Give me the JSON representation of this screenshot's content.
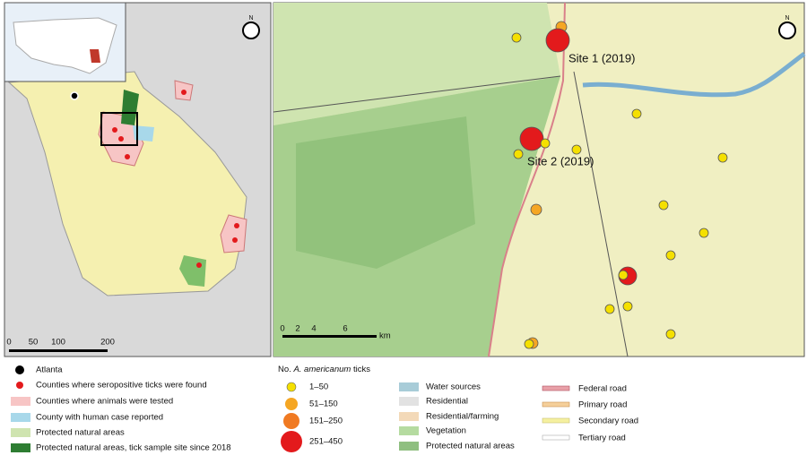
{
  "left_map": {
    "scale_labels": [
      "0",
      "50",
      "100",
      "200"
    ],
    "north_label": "N"
  },
  "right_map": {
    "site_labels": [
      "Site 1 (2019)",
      "Site 2 (2019)"
    ],
    "scale_labels": [
      "0",
      "2",
      "4",
      "6"
    ],
    "scale_unit": "km",
    "north_label": "N"
  },
  "legend": {
    "map_items": [
      "Atlanta",
      "Counties where seropositive ticks were found",
      "Counties where animals were tested",
      "County with human case reported",
      "Protected natural areas",
      "Protected natural areas, tick sample site since 2018"
    ],
    "ticks_title": {
      "prefix": "No.",
      "species": "A. americanum",
      "suffix": "ticks"
    },
    "tick_classes": [
      "1–50",
      "51–150",
      "151–250",
      "251–450"
    ],
    "land_use": [
      "Water sources",
      "Residential",
      "Residential/farming",
      "Vegetation",
      "Protected natural areas"
    ],
    "roads": [
      "Federal road",
      "Primary road",
      "Secondary road",
      "Tertiary road"
    ]
  }
}
